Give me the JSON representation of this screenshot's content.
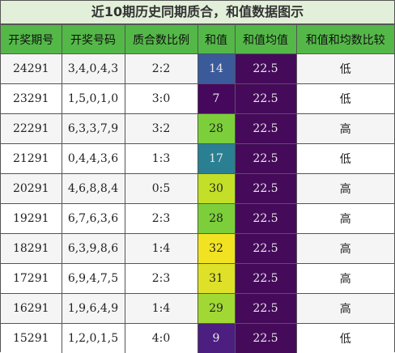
{
  "title": "近10期历史同期质合，和值数据图示",
  "headers": [
    "开奖期号",
    "开奖号码",
    "质合数比例",
    "和值",
    "和值均值",
    "和值和均数比较"
  ],
  "rows": [
    {
      "period": "24291",
      "numbers": "3,4,0,4,3",
      "ratio": "2:2",
      "sum": "14",
      "avg": "22.5",
      "cmp": "低",
      "sum_color": "#3b5a9a",
      "sum_text_color": "#e8e8e8"
    },
    {
      "period": "23291",
      "numbers": "1,5,0,1,0",
      "ratio": "3:0",
      "sum": "7",
      "avg": "22.5",
      "cmp": "低",
      "sum_color": "#46085c",
      "sum_text_color": "#e8e8e8"
    },
    {
      "period": "22291",
      "numbers": "6,3,3,7,9",
      "ratio": "3:2",
      "sum": "28",
      "avg": "22.5",
      "cmp": "高",
      "sum_color": "#7ccf3b",
      "sum_text_color": "#222222"
    },
    {
      "period": "21291",
      "numbers": "0,4,4,3,6",
      "ratio": "1:3",
      "sum": "17",
      "avg": "22.5",
      "cmp": "低",
      "sum_color": "#2a7f92",
      "sum_text_color": "#e8e8e8"
    },
    {
      "period": "20291",
      "numbers": "4,6,8,8,4",
      "ratio": "0:5",
      "sum": "30",
      "avg": "22.5",
      "cmp": "高",
      "sum_color": "#c4df27",
      "sum_text_color": "#222222"
    },
    {
      "period": "19291",
      "numbers": "6,7,6,3,6",
      "ratio": "2:3",
      "sum": "28",
      "avg": "22.5",
      "cmp": "高",
      "sum_color": "#7ccf3b",
      "sum_text_color": "#222222"
    },
    {
      "period": "18291",
      "numbers": "6,3,9,8,6",
      "ratio": "1:4",
      "sum": "32",
      "avg": "22.5",
      "cmp": "高",
      "sum_color": "#f1e321",
      "sum_text_color": "#222222"
    },
    {
      "period": "17291",
      "numbers": "6,9,4,7,5",
      "ratio": "2:3",
      "sum": "31",
      "avg": "22.5",
      "cmp": "高",
      "sum_color": "#dfe128",
      "sum_text_color": "#222222"
    },
    {
      "period": "16291",
      "numbers": "1,9,6,4,9",
      "ratio": "1:4",
      "sum": "29",
      "avg": "22.5",
      "cmp": "高",
      "sum_color": "#a2d834",
      "sum_text_color": "#222222"
    },
    {
      "period": "15291",
      "numbers": "1,2,0,1,5",
      "ratio": "4:0",
      "sum": "9",
      "avg": "22.5",
      "cmp": "低",
      "sum_color": "#4b1e7f",
      "sum_text_color": "#e8e8e8"
    }
  ]
}
